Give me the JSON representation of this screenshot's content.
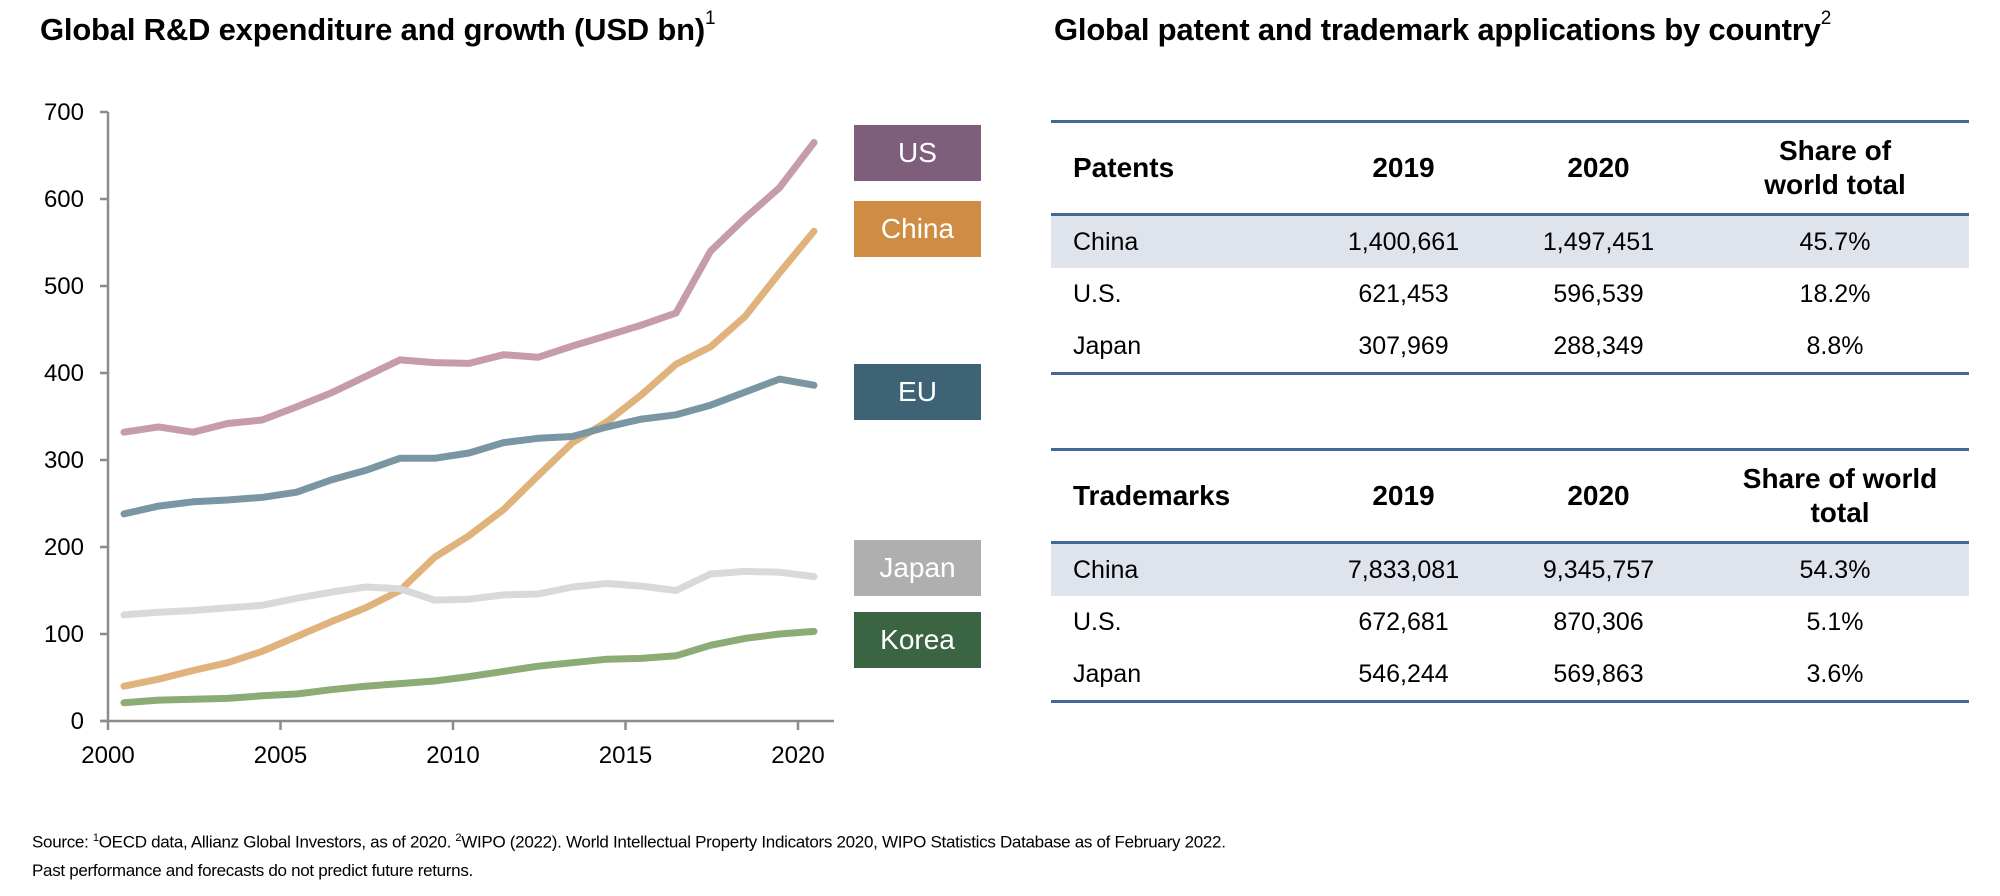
{
  "chart_title": "Global R&D expenditure and growth (USD bn)",
  "chart_title_sup": "1",
  "table_title": "Global patent and trademark applications by country",
  "table_title_sup": "2",
  "chart_data": {
    "type": "line",
    "title": "Global R&D expenditure and growth (USD bn)",
    "xlabel": "",
    "ylabel": "",
    "x": [
      2000,
      2001,
      2002,
      2003,
      2004,
      2005,
      2006,
      2007,
      2008,
      2009,
      2010,
      2011,
      2012,
      2013,
      2014,
      2015,
      2016,
      2017,
      2018,
      2019,
      2020
    ],
    "x_tick_labels": [
      "2000",
      "2005",
      "2010",
      "2015",
      "2020"
    ],
    "x_tick_values": [
      2000,
      2005,
      2010,
      2015,
      2020
    ],
    "y_tick_labels": [
      "0",
      "100",
      "200",
      "300",
      "400",
      "500",
      "600",
      "700"
    ],
    "y_tick_values": [
      0,
      100,
      200,
      300,
      400,
      500,
      600,
      700
    ],
    "ylim": [
      0,
      700
    ],
    "grid": false,
    "legend_placement": "right",
    "series": [
      {
        "name": "US",
        "line_color": "#c59ca8",
        "legend_color": "#7e5e7b",
        "values": [
          332,
          338,
          332,
          342,
          346,
          361,
          377,
          396,
          415,
          412,
          411,
          421,
          418,
          431,
          443,
          455,
          469,
          540,
          578,
          613,
          665
        ]
      },
      {
        "name": "China",
        "line_color": "#e0b27c",
        "legend_color": "#cf8c44",
        "values": [
          40,
          48,
          58,
          67,
          80,
          97,
          114,
          130,
          150,
          188,
          213,
          243,
          282,
          320,
          344,
          375,
          410,
          430,
          465,
          515,
          563
        ]
      },
      {
        "name": "EU",
        "line_color": "#7a96a2",
        "legend_color": "#3e6374",
        "values": [
          238,
          247,
          252,
          254,
          257,
          263,
          277,
          288,
          302,
          302,
          308,
          320,
          325,
          327,
          338,
          347,
          352,
          363,
          378,
          393,
          386
        ]
      },
      {
        "name": "Japan",
        "line_color": "#d9d9d9",
        "legend_color": "#afafaf",
        "values": [
          122,
          125,
          127,
          130,
          133,
          141,
          148,
          154,
          152,
          139,
          140,
          145,
          146,
          154,
          158,
          155,
          150,
          169,
          172,
          171,
          166
        ]
      },
      {
        "name": "Korea",
        "line_color": "#8dab75",
        "legend_color": "#3b6442",
        "values": [
          21,
          24,
          25,
          26,
          29,
          31,
          36,
          40,
          43,
          46,
          51,
          57,
          63,
          67,
          71,
          72,
          75,
          87,
          95,
          100,
          103
        ]
      }
    ]
  },
  "patents_table": {
    "headers": [
      "Patents",
      "2019",
      "2020",
      "Share of world total"
    ],
    "rows": [
      [
        "China",
        "1,400,661",
        "1,497,451",
        "45.7%"
      ],
      [
        "U.S.",
        "621,453",
        "596,539",
        "18.2%"
      ],
      [
        "Japan",
        "307,969",
        "288,349",
        "8.8%"
      ]
    ]
  },
  "trademarks_table": {
    "headers": [
      "Trademarks",
      "2019",
      "2020",
      "Share of world total"
    ],
    "rows": [
      [
        "China",
        "7,833,081",
        "9,345,757",
        "54.3%"
      ],
      [
        "U.S.",
        "672,681",
        "870,306",
        "5.1%"
      ],
      [
        "Japan",
        "546,244",
        "569,863",
        "3.6%"
      ]
    ]
  },
  "footer": {
    "source_prefix": "Source: ",
    "sup1": "1",
    "source1": "OECD data, Allianz Global Investors, as of 2020. ",
    "sup2": "2",
    "source2": "WIPO (2022). World Intellectual Property Indicators 2020, WIPO Statistics Database as of February 2022.",
    "disclaimer": "Past performance and forecasts do not predict future returns."
  },
  "colors": {
    "table_rule": "#44689a",
    "table_shade": "#dee3ec",
    "axis": "#8c8c8c"
  }
}
